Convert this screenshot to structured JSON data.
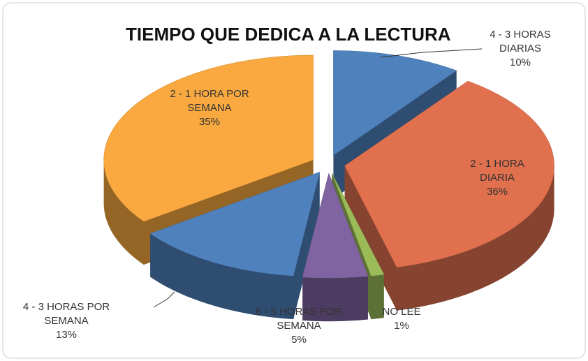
{
  "chart_data": {
    "type": "pie3d",
    "title": "TIEMPO QUE DEDICA A LA LECTURA",
    "categories": [
      "4 - 3 HORAS DIARIAS",
      "2 - 1 HORA DIARIA",
      "NO LEE",
      "6 - 5 HORAS POR SEMANA",
      "4 - 3 HORAS POR SEMANA",
      "2 - 1 HORA POR SEMANA"
    ],
    "values": [
      10,
      36,
      1,
      5,
      13,
      35
    ],
    "value_labels": [
      "10%",
      "36%",
      "1%",
      "5%",
      "13%",
      "35%"
    ],
    "colors": [
      "#4f81bd",
      "#e0704e",
      "#9bbb59",
      "#8064a2",
      "#4f81bd",
      "#f9a940"
    ]
  }
}
